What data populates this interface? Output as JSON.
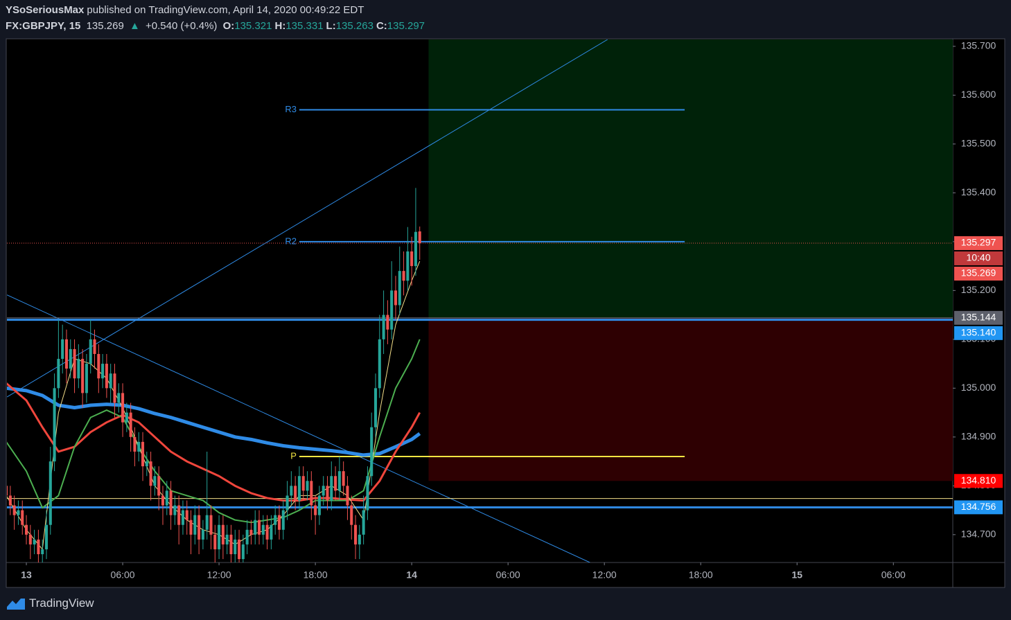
{
  "header": {
    "author": "YSoSeriousMax",
    "published": "published on TradingView.com, April 14, 2020 00:49:22 EDT",
    "symbol": "FX:GBPJPY, 15",
    "price": 135.269,
    "arrow": "▲",
    "change": "+0.540 (+0.4%)",
    "ohlc": [
      {
        "key": "O:",
        "value": 135.321
      },
      {
        "key": "H:",
        "value": 135.331
      },
      {
        "key": "L:",
        "value": 135.263
      },
      {
        "key": "C:",
        "value": 135.297
      }
    ]
  },
  "footer": {
    "brand": "TradingView"
  },
  "chart_data": {
    "type": "candlestick",
    "xlim": [
      -1.21,
      57.7
    ],
    "ylim": [
      134.643,
      135.714
    ],
    "xticks": [
      {
        "value": 0,
        "label": "13"
      },
      {
        "value": 6,
        "label": "06:00"
      },
      {
        "value": 12,
        "label": "12:00"
      },
      {
        "value": 18,
        "label": "18:00"
      },
      {
        "value": 24,
        "label": "14"
      },
      {
        "value": 30,
        "label": "06:00"
      },
      {
        "value": 36,
        "label": "12:00"
      },
      {
        "value": 42,
        "label": "18:00"
      },
      {
        "value": 48,
        "label": "15"
      },
      {
        "value": 54,
        "label": "06:00"
      }
    ],
    "yticks": [
      {
        "value": 134.7,
        "label": "134.700"
      },
      {
        "value": 134.8,
        "label": "134.800"
      },
      {
        "value": 134.9,
        "label": "134.900"
      },
      {
        "value": 135.0,
        "label": "135.000"
      },
      {
        "value": 135.1,
        "label": "135.100"
      },
      {
        "value": 135.2,
        "label": "135.200"
      },
      {
        "value": 135.3,
        "label": "135.300"
      },
      {
        "value": 135.4,
        "label": "135.400"
      },
      {
        "value": 135.5,
        "label": "135.500"
      },
      {
        "value": 135.6,
        "label": "135.600"
      },
      {
        "value": 135.7,
        "label": "135.700"
      }
    ],
    "up_color": "#26a69a",
    "down_color": "#ef5350",
    "x": [
      -1.25,
      -1,
      -0.75,
      -0.5,
      -0.25,
      0,
      0.25,
      0.5,
      0.75,
      1,
      1.25,
      1.5,
      1.75,
      2,
      2.25,
      2.5,
      2.75,
      3,
      3.25,
      3.5,
      3.75,
      4,
      4.25,
      4.5,
      4.75,
      5,
      5.25,
      5.5,
      5.75,
      6,
      6.25,
      6.5,
      6.75,
      7,
      7.25,
      7.5,
      7.75,
      8,
      8.25,
      8.5,
      8.75,
      9,
      9.25,
      9.5,
      9.75,
      10,
      10.25,
      10.5,
      10.75,
      11,
      11.25,
      11.5,
      11.75,
      12,
      12.25,
      12.5,
      12.75,
      13,
      13.25,
      13.5,
      13.75,
      14,
      14.25,
      14.5,
      14.75,
      15,
      15.25,
      15.5,
      15.75,
      16,
      16.25,
      16.5,
      16.75,
      17,
      17.25,
      17.5,
      17.75,
      18,
      18.25,
      18.5,
      18.75,
      19,
      19.25,
      19.5,
      19.75,
      20,
      20.25,
      20.5,
      20.75,
      21,
      21.25,
      21.5,
      21.75,
      22,
      22.25,
      22.5,
      22.75,
      23,
      23.25,
      23.5,
      23.75,
      24,
      24.25,
      24.5
    ],
    "open": [
      134.8,
      134.78,
      134.76,
      134.74,
      134.75,
      134.72,
      134.7,
      134.68,
      134.69,
      134.66,
      134.67,
      134.72,
      134.85,
      135.0,
      135.06,
      135.1,
      135.04,
      135.08,
      135.02,
      135.06,
      134.99,
      135.05,
      135.1,
      135.07,
      135.02,
      135.05,
      135.0,
      135.03,
      134.97,
      134.99,
      134.93,
      134.95,
      134.9,
      134.87,
      134.89,
      134.84,
      134.85,
      134.8,
      134.82,
      134.78,
      134.76,
      134.79,
      134.74,
      134.76,
      134.72,
      134.75,
      134.73,
      134.7,
      134.74,
      134.69,
      134.71,
      134.74,
      134.7,
      134.67,
      134.72,
      134.68,
      134.7,
      134.66,
      134.69,
      134.65,
      134.68,
      134.71,
      134.7,
      134.73,
      134.7,
      134.72,
      134.69,
      134.72,
      134.74,
      134.71,
      134.75,
      134.78,
      134.8,
      134.77,
      134.82,
      134.79,
      134.81,
      134.76,
      134.74,
      134.78,
      134.8,
      134.77,
      134.82,
      134.79,
      134.83,
      134.8,
      134.76,
      134.72,
      134.68,
      134.7,
      134.75,
      134.82,
      134.92,
      135.0,
      135.1,
      135.15,
      135.12,
      135.2,
      135.17,
      135.24,
      135.22,
      135.28,
      135.25,
      135.321
    ],
    "high": [
      134.82,
      134.8,
      134.78,
      134.77,
      134.77,
      134.74,
      134.72,
      134.71,
      134.71,
      134.69,
      134.75,
      134.88,
      135.03,
      135.14,
      135.13,
      135.12,
      135.1,
      135.1,
      135.09,
      135.08,
      135.07,
      135.14,
      135.12,
      135.09,
      135.07,
      135.07,
      135.05,
      135.05,
      135.01,
      135.01,
      134.97,
      134.97,
      134.92,
      134.91,
      134.91,
      134.87,
      134.87,
      134.84,
      134.84,
      134.8,
      134.81,
      134.81,
      134.78,
      134.78,
      134.77,
      134.77,
      134.75,
      134.76,
      134.76,
      134.73,
      134.87,
      134.76,
      134.72,
      134.74,
      134.74,
      134.72,
      134.72,
      134.71,
      134.71,
      134.7,
      134.73,
      134.73,
      134.75,
      134.75,
      134.74,
      134.74,
      134.74,
      134.76,
      134.76,
      134.77,
      134.81,
      134.83,
      134.82,
      134.84,
      134.84,
      134.83,
      134.83,
      134.78,
      134.8,
      134.82,
      134.82,
      134.85,
      134.84,
      134.86,
      134.85,
      134.82,
      134.78,
      134.74,
      134.72,
      134.78,
      134.84,
      134.95,
      135.03,
      135.15,
      135.2,
      135.18,
      135.26,
      135.23,
      135.29,
      135.28,
      135.33,
      135.31,
      135.41,
      135.331
    ],
    "low": [
      134.76,
      134.74,
      134.71,
      134.72,
      134.7,
      134.68,
      134.65,
      134.66,
      134.64,
      134.64,
      134.65,
      134.7,
      134.83,
      134.98,
      135.03,
      135.01,
      135.02,
      134.99,
      135.0,
      134.96,
      134.97,
      135.03,
      135.04,
      134.99,
      135.0,
      134.98,
      134.97,
      134.94,
      134.95,
      134.9,
      134.91,
      134.87,
      134.84,
      134.85,
      134.81,
      134.82,
      134.77,
      134.78,
      134.75,
      134.72,
      134.74,
      134.71,
      134.72,
      134.68,
      134.7,
      134.7,
      134.66,
      134.68,
      134.66,
      134.67,
      134.69,
      134.67,
      134.64,
      134.65,
      134.65,
      134.66,
      134.64,
      134.64,
      134.64,
      134.64,
      134.66,
      134.68,
      134.68,
      134.68,
      134.68,
      134.67,
      134.67,
      134.7,
      134.69,
      134.69,
      134.73,
      134.76,
      134.75,
      134.75,
      134.77,
      134.77,
      134.73,
      134.7,
      134.72,
      134.76,
      134.75,
      134.75,
      134.77,
      134.77,
      134.78,
      134.73,
      134.69,
      134.65,
      134.65,
      134.68,
      134.73,
      134.8,
      134.9,
      134.98,
      135.07,
      135.09,
      135.1,
      135.14,
      135.15,
      135.19,
      135.2,
      135.21,
      135.23,
      135.263
    ],
    "close": [
      134.78,
      134.76,
      134.74,
      134.75,
      134.72,
      134.7,
      134.68,
      134.69,
      134.66,
      134.67,
      134.72,
      134.85,
      135.0,
      135.06,
      135.1,
      135.04,
      135.08,
      135.02,
      135.06,
      134.99,
      135.05,
      135.1,
      135.07,
      135.02,
      135.05,
      135.0,
      135.03,
      134.97,
      134.99,
      134.93,
      134.95,
      134.9,
      134.87,
      134.89,
      134.84,
      134.85,
      134.8,
      134.82,
      134.78,
      134.76,
      134.79,
      134.74,
      134.76,
      134.72,
      134.75,
      134.73,
      134.7,
      134.74,
      134.69,
      134.71,
      134.74,
      134.7,
      134.67,
      134.72,
      134.68,
      134.7,
      134.66,
      134.69,
      134.65,
      134.68,
      134.71,
      134.7,
      134.73,
      134.7,
      134.72,
      134.69,
      134.72,
      134.74,
      134.71,
      134.75,
      134.78,
      134.8,
      134.77,
      134.82,
      134.79,
      134.81,
      134.76,
      134.74,
      134.78,
      134.8,
      134.77,
      134.82,
      134.79,
      134.83,
      134.8,
      134.76,
      134.72,
      134.68,
      134.7,
      134.75,
      134.82,
      134.92,
      135.0,
      135.1,
      135.15,
      135.12,
      135.2,
      135.17,
      135.24,
      135.22,
      135.28,
      135.25,
      135.32,
      135.297
    ],
    "line_x": [
      -1.25,
      0,
      1,
      2,
      3,
      4,
      5,
      6,
      7,
      8,
      9,
      10,
      11,
      12,
      13,
      14,
      15,
      16,
      17,
      18,
      19,
      20,
      21,
      22,
      23,
      24,
      24.5
    ],
    "lines": [
      {
        "color": "#2f8be6",
        "width": 5,
        "values": [
          135.0,
          134.995,
          134.985,
          134.965,
          134.96,
          134.965,
          134.967,
          134.965,
          134.958,
          134.948,
          134.94,
          134.93,
          134.92,
          134.91,
          134.9,
          134.895,
          134.888,
          134.882,
          134.878,
          134.875,
          134.872,
          134.868,
          134.863,
          134.866,
          134.88,
          134.895,
          134.907
        ]
      },
      {
        "color": "#f0463c",
        "width": 3,
        "values": [
          135.01,
          134.975,
          134.92,
          134.87,
          134.88,
          134.91,
          134.93,
          134.945,
          134.93,
          134.9,
          134.87,
          134.85,
          134.835,
          134.82,
          134.8,
          134.785,
          134.775,
          134.77,
          134.77,
          134.775,
          134.775,
          134.772,
          134.77,
          134.81,
          134.87,
          134.92,
          134.95
        ]
      },
      {
        "color": "#4caf50",
        "width": 2,
        "values": [
          134.89,
          134.83,
          134.755,
          134.78,
          134.88,
          134.94,
          134.955,
          134.94,
          134.88,
          134.83,
          134.79,
          134.78,
          134.77,
          134.745,
          134.73,
          134.725,
          134.73,
          134.735,
          134.75,
          134.77,
          134.77,
          134.77,
          134.79,
          134.9,
          135.0,
          135.06,
          135.1
        ]
      },
      {
        "color": "#f5e08a",
        "width": 1,
        "values": [
          134.78,
          134.71,
          134.67,
          134.95,
          135.06,
          135.05,
          135.02,
          134.96,
          134.88,
          134.8,
          134.76,
          134.73,
          134.71,
          134.7,
          134.68,
          134.7,
          134.71,
          134.74,
          134.78,
          134.78,
          134.8,
          134.78,
          134.73,
          134.95,
          135.13,
          135.22,
          135.26
        ]
      }
    ],
    "boxes": [
      {
        "x": [
          25.05,
          57.7
        ],
        "y": [
          135.144,
          135.714
        ],
        "color": "#002209"
      },
      {
        "x": [
          25.05,
          57.7
        ],
        "y": [
          134.81,
          135.144
        ],
        "color": "#2e0002"
      }
    ],
    "trendlines": [
      {
        "x": [
          -1.21,
          36.2
        ],
        "y": [
          134.982,
          135.714
        ],
        "color": "#2f8be6"
      },
      {
        "x": [
          -1.21,
          35.1
        ],
        "y": [
          135.191,
          134.643
        ],
        "color": "#2f8be6"
      }
    ],
    "hlines": [
      {
        "value": 135.144,
        "color": "#787b86",
        "width": 1
      },
      {
        "value": 135.14,
        "color": "#2f8be6",
        "width": 3
      },
      {
        "value": 134.756,
        "color": "#2f8be6",
        "width": 3
      },
      {
        "value": 134.774,
        "color": "#f5e08a",
        "width": 1
      },
      {
        "value": 135.297,
        "color": "#ef5350",
        "width": 1,
        "dotted": true
      }
    ],
    "pivots": [
      {
        "label": "R3",
        "value": 135.57,
        "x": [
          17,
          41
        ],
        "color": "#2f8be6"
      },
      {
        "label": "R2",
        "value": 135.3,
        "x": [
          17,
          41
        ],
        "color": "#2f8be6"
      },
      {
        "label": "P",
        "value": 134.86,
        "x": [
          17,
          41
        ],
        "color": "#f5e642"
      }
    ],
    "axis_labels": [
      {
        "value": 135.297,
        "label": "135.297",
        "color": "#ef5350"
      },
      {
        "label": "10:40",
        "color": "#c0393b"
      },
      {
        "value": 135.269,
        "label": "135.269",
        "color": "#ef5350"
      },
      {
        "value": 135.144,
        "label": "135.144",
        "color": "#5d606b"
      },
      {
        "value": 135.14,
        "label": "135.140",
        "color": "#2196f3"
      },
      {
        "value": 134.81,
        "label": "134.810",
        "color": "#ff0000"
      },
      {
        "value": 134.756,
        "label": "134.756",
        "color": "#2196f3"
      }
    ]
  }
}
